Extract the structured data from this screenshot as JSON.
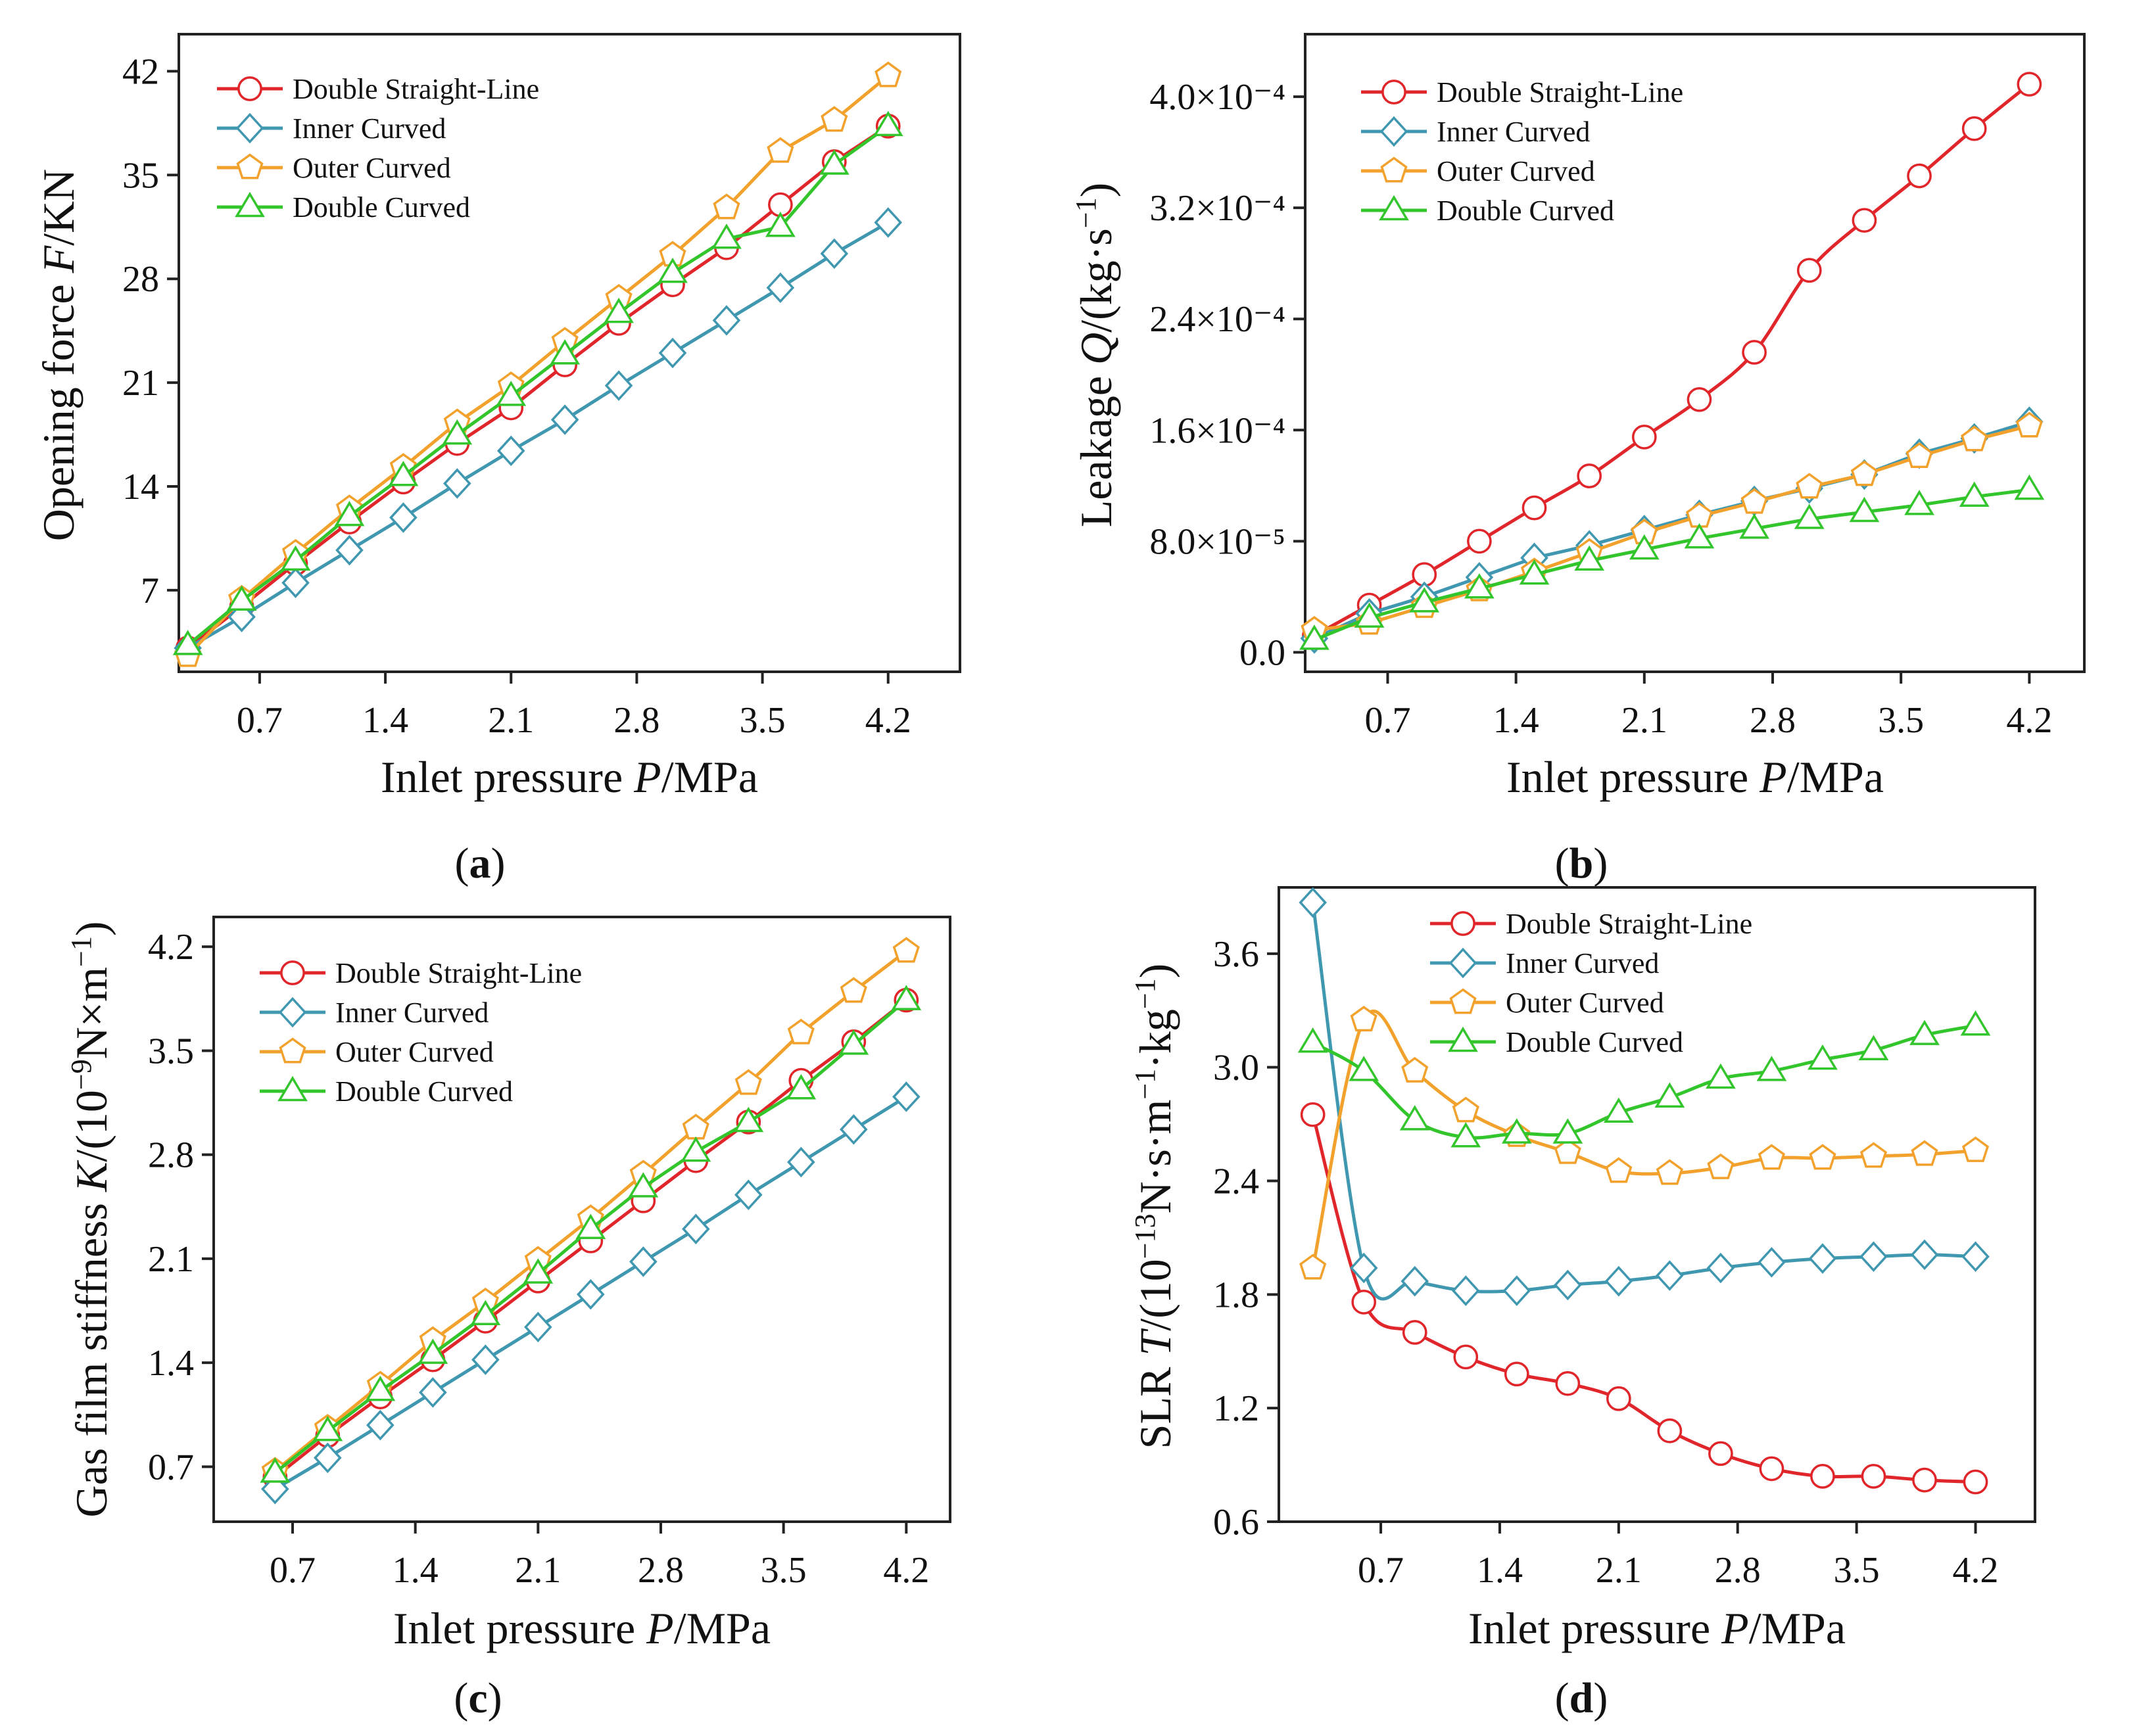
{
  "colors": {
    "double_straight": "#e0262a",
    "inner_curved": "#3f97b0",
    "outer_curved": "#f2a22c",
    "double_curved": "#33c52c",
    "axis": "#222222"
  },
  "chart_data": [
    {
      "type": "line",
      "id": "a",
      "panel_label": "(a)",
      "panel_letter": "a",
      "xlabel_parts": [
        "Inlet pressure ",
        "P",
        "/MPa"
      ],
      "ylabel_parts": [
        "Opening force ",
        "F",
        "/KN"
      ],
      "xlim": [
        0.25,
        4.6
      ],
      "ylim": [
        1.5,
        44.5
      ],
      "xticks": [
        0.7,
        1.4,
        2.1,
        2.8,
        3.5,
        4.2
      ],
      "xtick_labels": [
        "0.7",
        "1.4",
        "2.1",
        "2.8",
        "3.5",
        "4.2"
      ],
      "yticks": [
        7,
        14,
        21,
        28,
        35,
        42
      ],
      "ytick_labels": [
        "7",
        "14",
        "21",
        "28",
        "35",
        "42"
      ],
      "legend": [
        "Double Straight-Line",
        "Inner Curved",
        "Outer Curved",
        "Double Curved"
      ],
      "legend_position": "top-left",
      "series": [
        {
          "name": "Double Straight-Line",
          "marker": "circle",
          "color_key": "double_straight",
          "x": [
            0.3,
            0.6,
            0.9,
            1.2,
            1.5,
            1.8,
            2.1,
            2.4,
            2.7,
            3.0,
            3.3,
            3.6,
            3.9,
            4.2
          ],
          "y": [
            3.1,
            5.9,
            8.8,
            11.6,
            14.3,
            16.9,
            19.3,
            22.2,
            25.0,
            27.6,
            30.1,
            33.0,
            35.9,
            38.3
          ]
        },
        {
          "name": "Inner Curved",
          "marker": "diamond",
          "color_key": "inner_curved",
          "x": [
            0.3,
            0.6,
            0.9,
            1.2,
            1.5,
            1.8,
            2.1,
            2.4,
            2.7,
            3.0,
            3.3,
            3.6,
            3.9,
            4.2
          ],
          "y": [
            3.1,
            5.2,
            7.5,
            9.7,
            11.9,
            14.2,
            16.4,
            18.5,
            20.8,
            23.0,
            25.2,
            27.4,
            29.7,
            31.8
          ]
        },
        {
          "name": "Outer Curved",
          "marker": "pentagon",
          "color_key": "outer_curved",
          "x": [
            0.3,
            0.6,
            0.9,
            1.2,
            1.5,
            1.8,
            2.1,
            2.4,
            2.7,
            3.0,
            3.3,
            3.6,
            3.9,
            4.2
          ],
          "y": [
            2.6,
            6.4,
            9.5,
            12.5,
            15.3,
            18.3,
            20.8,
            23.8,
            26.7,
            29.6,
            32.8,
            36.6,
            38.7,
            41.7
          ]
        },
        {
          "name": "Double Curved",
          "marker": "triangle",
          "color_key": "double_curved",
          "x": [
            0.3,
            0.6,
            0.9,
            1.2,
            1.5,
            1.8,
            2.1,
            2.4,
            2.7,
            3.0,
            3.3,
            3.6,
            3.9,
            4.2
          ],
          "y": [
            3.3,
            6.3,
            9.0,
            12.0,
            14.7,
            17.5,
            20.1,
            22.9,
            25.7,
            28.4,
            30.7,
            31.5,
            35.7,
            38.3
          ]
        }
      ]
    },
    {
      "type": "line",
      "id": "b",
      "panel_label": "(b)",
      "panel_letter": "b",
      "xlabel_parts": [
        "Inlet pressure ",
        "P",
        "/MPa"
      ],
      "ylabel_parts": [
        "Leakage ",
        "Q",
        "/(kg·s",
        "−1",
        ")"
      ],
      "xlim": [
        0.25,
        4.5
      ],
      "ylim": [
        -1.4e-05,
        0.000445
      ],
      "xticks": [
        0.7,
        1.4,
        2.1,
        2.8,
        3.5,
        4.2
      ],
      "xtick_labels": [
        "0.7",
        "1.4",
        "2.1",
        "2.8",
        "3.5",
        "4.2"
      ],
      "yticks": [
        0.0,
        8e-05,
        0.00016,
        0.00024,
        0.00032,
        0.0004
      ],
      "ytick_labels": [
        "0.0",
        "8.0×10⁻⁵",
        "1.6×10⁻⁴",
        "2.4×10⁻⁴",
        "3.2×10⁻⁴",
        "4.0×10⁻⁴"
      ],
      "legend": [
        "Double Straight-Line",
        "Inner Curved",
        "Outer Curved",
        "Double Curved"
      ],
      "legend_position": "top-left",
      "series": [
        {
          "name": "Double Straight-Line",
          "marker": "circle",
          "color_key": "double_straight",
          "x": [
            0.3,
            0.6,
            0.9,
            1.2,
            1.5,
            1.8,
            2.1,
            2.4,
            2.7,
            3.0,
            3.3,
            3.6,
            3.9,
            4.2
          ],
          "y": [
            1.2e-05,
            3.4e-05,
            5.6e-05,
            8e-05,
            0.000104,
            0.000127,
            0.000155,
            0.000182,
            0.000216,
            0.000275,
            0.000311,
            0.000343,
            0.000377,
            0.000409
          ]
        },
        {
          "name": "Inner Curved",
          "marker": "diamond",
          "color_key": "inner_curved",
          "x": [
            0.3,
            0.6,
            0.9,
            1.2,
            1.5,
            1.8,
            2.1,
            2.4,
            2.7,
            3.0,
            3.3,
            3.6,
            3.9,
            4.2
          ],
          "y": [
            1e-05,
            2.8e-05,
            4e-05,
            5.4e-05,
            6.8e-05,
            7.7e-05,
            8.8e-05,
            9.9e-05,
            0.000109,
            0.000118,
            0.000128,
            0.000143,
            0.000154,
            0.000166
          ]
        },
        {
          "name": "Outer Curved",
          "marker": "pentagon",
          "color_key": "outer_curved",
          "x": [
            0.3,
            0.6,
            0.9,
            1.2,
            1.5,
            1.8,
            2.1,
            2.4,
            2.7,
            3.0,
            3.3,
            3.6,
            3.9,
            4.2
          ],
          "y": [
            1.6e-05,
            2.1e-05,
            3.3e-05,
            4.5e-05,
            5.8e-05,
            7.2e-05,
            8.6e-05,
            9.8e-05,
            0.000108,
            0.000119,
            0.000128,
            0.000141,
            0.000153,
            0.000163
          ]
        },
        {
          "name": "Double Curved",
          "marker": "triangle",
          "color_key": "double_curved",
          "x": [
            0.3,
            0.6,
            0.9,
            1.2,
            1.5,
            1.8,
            2.1,
            2.4,
            2.7,
            3.0,
            3.3,
            3.6,
            3.9,
            4.2
          ],
          "y": [
            9e-06,
            2.5e-05,
            3.6e-05,
            4.6e-05,
            5.6e-05,
            6.6e-05,
            7.4e-05,
            8.2e-05,
            8.9e-05,
            9.6e-05,
            0.000101,
            0.000106,
            0.000112,
            0.000117
          ]
        }
      ]
    },
    {
      "type": "line",
      "id": "c",
      "panel_label": "(c)",
      "panel_letter": "c",
      "xlabel_parts": [
        "Inlet pressure ",
        "P",
        "/MPa"
      ],
      "ylabel_parts": [
        "Gas film stiffness ",
        "K",
        "/(10",
        "−9",
        "N×m",
        "−1",
        ")"
      ],
      "xlim": [
        0.25,
        4.45
      ],
      "ylim": [
        0.33,
        4.4
      ],
      "xticks": [
        0.7,
        1.4,
        2.1,
        2.8,
        3.5,
        4.2
      ],
      "xtick_labels": [
        "0.7",
        "1.4",
        "2.1",
        "2.8",
        "3.5",
        "4.2"
      ],
      "yticks": [
        0.7,
        1.4,
        2.1,
        2.8,
        3.5,
        4.2
      ],
      "ytick_labels": [
        "0.7",
        "1.4",
        "2.1",
        "2.8",
        "3.5",
        "4.2"
      ],
      "legend": [
        "Double Straight-Line",
        "Inner Curved",
        "Outer Curved",
        "Double Curved"
      ],
      "legend_position": "top-left",
      "series": [
        {
          "name": "Double Straight-Line",
          "marker": "circle",
          "color_key": "double_straight",
          "x": [
            0.6,
            0.9,
            1.2,
            1.5,
            1.8,
            2.1,
            2.4,
            2.7,
            3.0,
            3.3,
            3.6,
            3.9,
            4.2
          ],
          "y": [
            0.63,
            0.91,
            1.17,
            1.42,
            1.68,
            1.95,
            2.22,
            2.49,
            2.76,
            3.02,
            3.3,
            3.56,
            3.84
          ]
        },
        {
          "name": "Inner Curved",
          "marker": "diamond",
          "color_key": "inner_curved",
          "x": [
            0.6,
            0.9,
            1.2,
            1.5,
            1.8,
            2.1,
            2.4,
            2.7,
            3.0,
            3.3,
            3.6,
            3.9,
            4.2
          ],
          "y": [
            0.55,
            0.76,
            0.98,
            1.2,
            1.42,
            1.64,
            1.86,
            2.08,
            2.3,
            2.53,
            2.75,
            2.97,
            3.19
          ]
        },
        {
          "name": "Outer Curved",
          "marker": "pentagon",
          "color_key": "outer_curved",
          "x": [
            0.6,
            0.9,
            1.2,
            1.5,
            1.8,
            2.1,
            2.4,
            2.7,
            3.0,
            3.3,
            3.6,
            3.9,
            4.2
          ],
          "y": [
            0.67,
            0.96,
            1.25,
            1.55,
            1.81,
            2.09,
            2.37,
            2.67,
            2.98,
            3.28,
            3.62,
            3.9,
            4.17
          ]
        },
        {
          "name": "Double Curved",
          "marker": "triangle",
          "color_key": "double_curved",
          "x": [
            0.6,
            0.9,
            1.2,
            1.5,
            1.8,
            2.1,
            2.4,
            2.7,
            3.0,
            3.3,
            3.6,
            3.9,
            4.2
          ],
          "y": [
            0.66,
            0.94,
            1.21,
            1.46,
            1.72,
            2.0,
            2.3,
            2.58,
            2.82,
            3.02,
            3.24,
            3.54,
            3.84
          ]
        }
      ]
    },
    {
      "type": "line",
      "id": "d",
      "panel_label": "(d)",
      "panel_letter": "d",
      "xlabel_parts": [
        "Inlet pressure ",
        "P",
        "/MPa"
      ],
      "ylabel_parts": [
        "SLR ",
        "T",
        "/(10",
        "−13",
        "N·s·m",
        "−1",
        "·kg",
        "−1",
        ")"
      ],
      "xlim": [
        0.1,
        4.55
      ],
      "ylim": [
        0.6,
        3.95
      ],
      "xticks": [
        0.7,
        1.4,
        2.1,
        2.8,
        3.5,
        4.2
      ],
      "xtick_labels": [
        "0.7",
        "1.4",
        "2.1",
        "2.8",
        "3.5",
        "4.2"
      ],
      "yticks": [
        0.6,
        1.2,
        1.8,
        2.4,
        3.0,
        3.6
      ],
      "ytick_labels": [
        "0.6",
        "1.2",
        "1.8",
        "2.4",
        "3.0",
        "3.6"
      ],
      "legend": [
        "Double Straight-Line",
        "Inner Curved",
        "Outer Curved",
        "Double Curved"
      ],
      "legend_position": "top-right",
      "series": [
        {
          "name": "Double Straight-Line",
          "marker": "circle",
          "color_key": "double_straight",
          "x": [
            0.3,
            0.6,
            0.9,
            1.2,
            1.5,
            1.8,
            2.1,
            2.4,
            2.7,
            3.0,
            3.3,
            3.6,
            3.9,
            4.2
          ],
          "y": [
            2.75,
            1.76,
            1.6,
            1.47,
            1.38,
            1.33,
            1.25,
            1.08,
            0.96,
            0.88,
            0.84,
            0.84,
            0.82,
            0.81
          ]
        },
        {
          "name": "Inner Curved",
          "marker": "diamond",
          "color_key": "inner_curved",
          "x": [
            0.3,
            0.6,
            0.9,
            1.2,
            1.5,
            1.8,
            2.1,
            2.4,
            2.7,
            3.0,
            3.3,
            3.6,
            3.9,
            4.2
          ],
          "y": [
            3.87,
            1.94,
            1.87,
            1.82,
            1.82,
            1.85,
            1.87,
            1.9,
            1.94,
            1.97,
            1.99,
            2.0,
            2.01,
            2.0
          ]
        },
        {
          "name": "Outer Curved",
          "marker": "pentagon",
          "color_key": "outer_curved",
          "x": [
            0.3,
            0.6,
            0.9,
            1.2,
            1.5,
            1.8,
            2.1,
            2.4,
            2.7,
            3.0,
            3.3,
            3.6,
            3.9,
            4.2
          ],
          "y": [
            1.94,
            3.25,
            2.98,
            2.77,
            2.64,
            2.55,
            2.45,
            2.44,
            2.47,
            2.52,
            2.52,
            2.53,
            2.54,
            2.56
          ]
        },
        {
          "name": "Double Curved",
          "marker": "triangle",
          "color_key": "double_curved",
          "x": [
            0.3,
            0.6,
            0.9,
            1.2,
            1.5,
            1.8,
            2.1,
            2.4,
            2.7,
            3.0,
            3.3,
            3.6,
            3.9,
            4.2
          ],
          "y": [
            3.13,
            2.98,
            2.72,
            2.63,
            2.65,
            2.65,
            2.76,
            2.84,
            2.94,
            2.98,
            3.04,
            3.09,
            3.17,
            3.22
          ]
        }
      ]
    }
  ]
}
